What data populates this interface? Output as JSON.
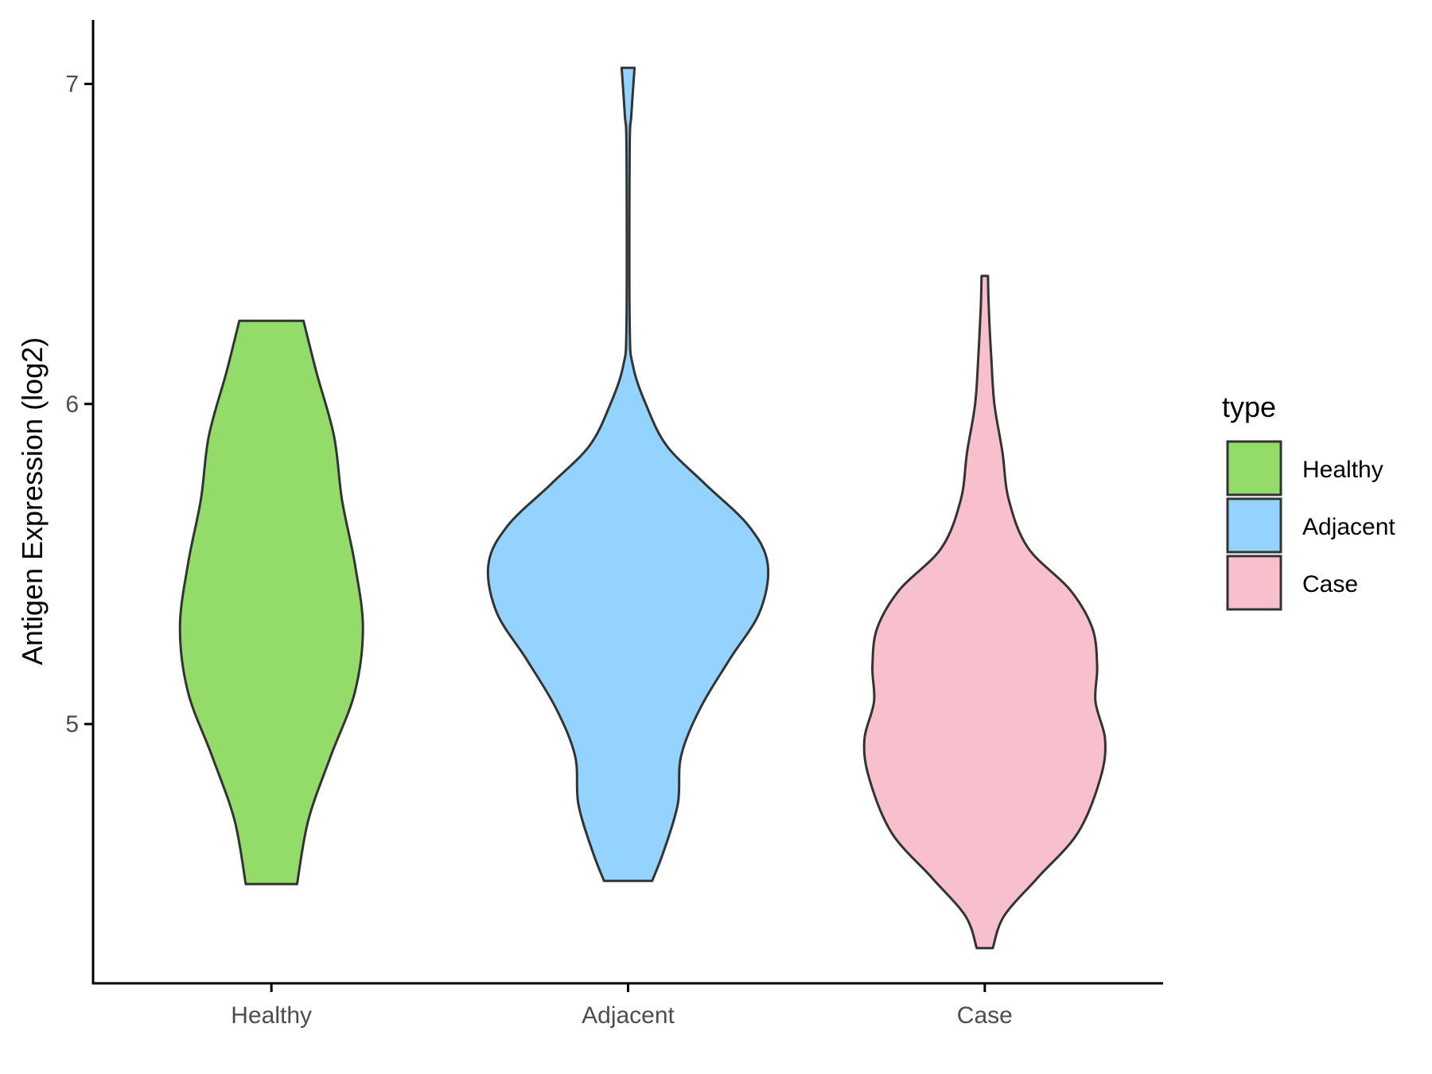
{
  "chart_data": {
    "type": "violin",
    "ylabel": "Antigen Expression (log2)",
    "xlabel": "",
    "ylim": [
      4.19,
      7.2
    ],
    "yticks": [
      5,
      6,
      7
    ],
    "categories": [
      "Healthy",
      "Adjacent",
      "Case"
    ],
    "legend": {
      "title": "type",
      "position": "right",
      "entries": [
        {
          "label": "Healthy",
          "color": "#93dc6a"
        },
        {
          "label": "Adjacent",
          "color": "#93d3fd"
        },
        {
          "label": "Case",
          "color": "#f7c0cc"
        }
      ]
    },
    "grid": false,
    "outline_color": "#333333",
    "series": [
      {
        "name": "Healthy",
        "color": "#93dc6a",
        "profile": [
          [
            4.5,
            0.16
          ],
          [
            4.7,
            0.23
          ],
          [
            4.9,
            0.37
          ],
          [
            5.1,
            0.52
          ],
          [
            5.3,
            0.57
          ],
          [
            5.5,
            0.52
          ],
          [
            5.7,
            0.44
          ],
          [
            5.9,
            0.39
          ],
          [
            6.1,
            0.28
          ],
          [
            6.26,
            0.2
          ]
        ]
      },
      {
        "name": "Adjacent",
        "color": "#93d3fd",
        "profile": [
          [
            4.51,
            0.15
          ],
          [
            4.6,
            0.22
          ],
          [
            4.75,
            0.31
          ],
          [
            4.9,
            0.33
          ],
          [
            5.05,
            0.45
          ],
          [
            5.2,
            0.63
          ],
          [
            5.35,
            0.82
          ],
          [
            5.5,
            0.87
          ],
          [
            5.62,
            0.75
          ],
          [
            5.75,
            0.48
          ],
          [
            5.87,
            0.24
          ],
          [
            6.0,
            0.11
          ],
          [
            6.12,
            0.03
          ],
          [
            6.25,
            0.01
          ],
          [
            6.8,
            0.01
          ],
          [
            6.9,
            0.02
          ],
          [
            7.05,
            0.04
          ]
        ]
      },
      {
        "name": "Case",
        "color": "#f7c0cc",
        "profile": [
          [
            4.3,
            0.05
          ],
          [
            4.4,
            0.12
          ],
          [
            4.52,
            0.33
          ],
          [
            4.66,
            0.58
          ],
          [
            4.83,
            0.72
          ],
          [
            4.95,
            0.75
          ],
          [
            5.07,
            0.69
          ],
          [
            5.18,
            0.7
          ],
          [
            5.3,
            0.67
          ],
          [
            5.42,
            0.53
          ],
          [
            5.55,
            0.27
          ],
          [
            5.7,
            0.15
          ],
          [
            5.85,
            0.11
          ],
          [
            6.0,
            0.06
          ],
          [
            6.15,
            0.04
          ],
          [
            6.3,
            0.025
          ],
          [
            6.4,
            0.02
          ]
        ]
      }
    ]
  }
}
